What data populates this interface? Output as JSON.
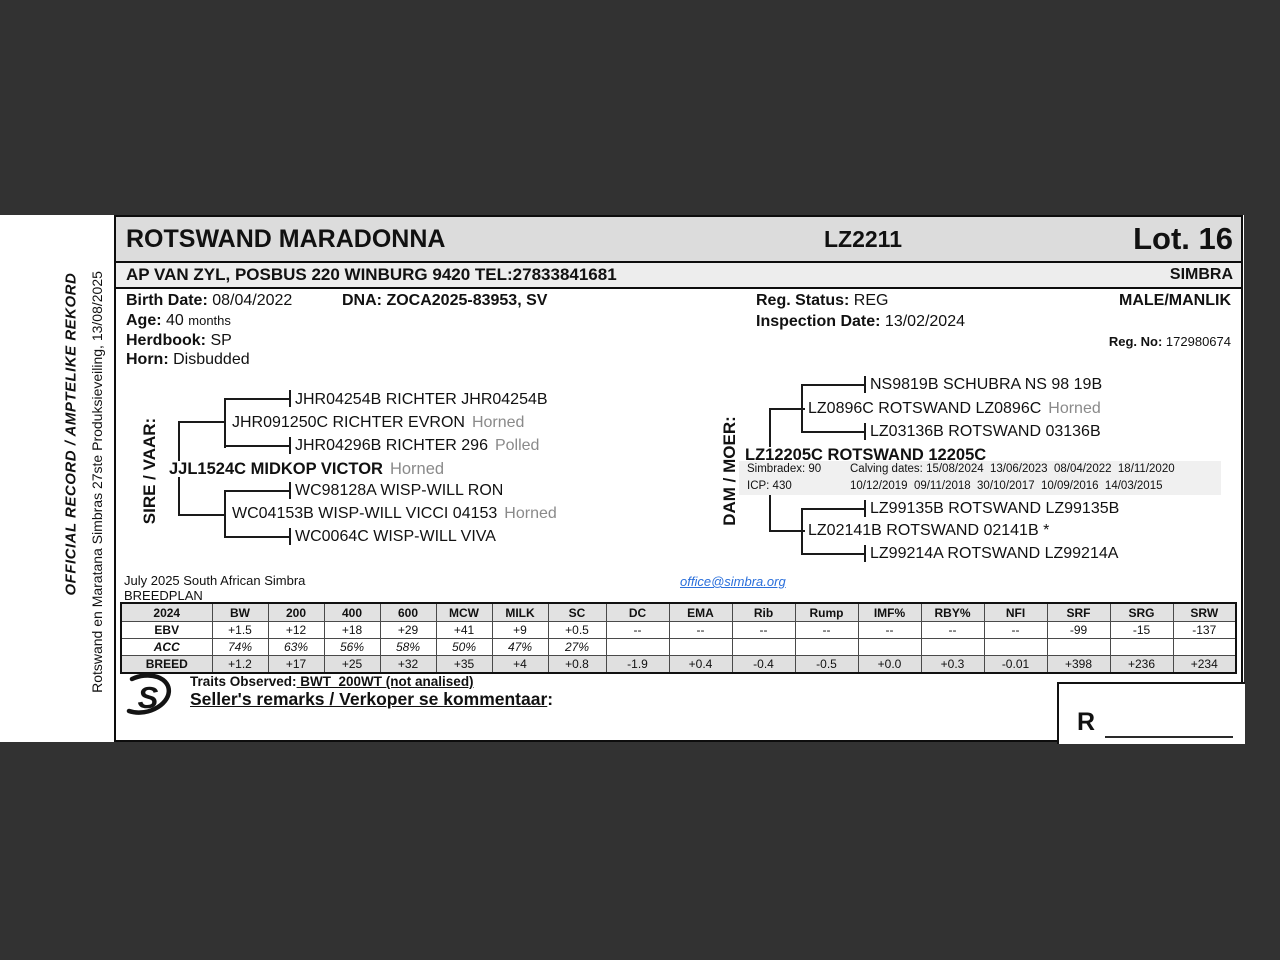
{
  "colors": {
    "page_background": "#323232",
    "link_blue": "#2a6fdb",
    "title_band_gray": "#dcdcdc",
    "owner_band_gray": "#ededed",
    "table_header_gray": "#e2e2e2",
    "dam_info_band_gray": "#f0f0f0"
  },
  "side": {
    "primary": "OFFICIAL RECORD / AMPTELIKE REKORD",
    "secondary": "Rotswand en Maratana Simbras 27ste Produksieveiling, 13/08/2025"
  },
  "header": {
    "animal_name": "ROTSWAND MARADONNA",
    "animal_id": "LZ2211",
    "lot": "Lot. 16",
    "owner_line": "AP VAN ZYL, POSBUS 220 WINBURG 9420 TEL:27833841681",
    "breed": "SIMBRA"
  },
  "details": {
    "birth_date_label": "Birth Date:",
    "birth_date": "08/04/2022",
    "dna_label": "DNA:",
    "dna": "ZOCA2025-83953, SV",
    "age_label": "Age:",
    "age_value": "40",
    "age_unit": "months",
    "herdbook_label": "Herdbook:",
    "herdbook": "SP",
    "horn_label": "Horn:",
    "horn": "Disbudded",
    "reg_status_label": "Reg. Status:",
    "reg_status": "REG",
    "inspection_label": "Inspection Date:",
    "inspection_date": "13/02/2024",
    "sex": "MALE/MANLIK",
    "reg_no_label": "Reg. No:",
    "reg_no": "172980674"
  },
  "pedigree": {
    "sire_label": "SIRE / VAAR:",
    "dam_label": "DAM / MOER:",
    "sire": {
      "name": "JJL1524C MIDKOP VICTOR",
      "horn": "Horned"
    },
    "sire_sire": {
      "name": "JHR091250C RICHTER EVRON",
      "horn": "Horned"
    },
    "sire_sire_sire": {
      "name": "JHR04254B RICHTER JHR04254B",
      "horn": ""
    },
    "sire_sire_dam": {
      "name": "JHR04296B RICHTER 296",
      "horn": "Polled"
    },
    "sire_dam": {
      "name": "WC04153B WISP-WILL VICCI 04153",
      "horn": "Horned"
    },
    "sire_dam_sire": {
      "name": "WC98128A WISP-WILL RON",
      "horn": ""
    },
    "sire_dam_dam": {
      "name": "WC0064C WISP-WILL VIVA",
      "horn": ""
    },
    "dam": {
      "name": "LZ12205C ROTSWAND 12205C",
      "horn": ""
    },
    "dam_sire": {
      "name": "LZ0896C ROTSWAND LZ0896C",
      "horn": "Horned"
    },
    "dam_sire_sire": {
      "name": "NS9819B SCHUBRA NS 98 19B",
      "horn": ""
    },
    "dam_sire_dam": {
      "name": "LZ03136B ROTSWAND 03136B",
      "horn": ""
    },
    "dam_dam": {
      "name": "LZ02141B ROTSWAND 02141B *",
      "horn": ""
    },
    "dam_dam_sire": {
      "name": "LZ99135B ROTSWAND LZ99135B",
      "horn": ""
    },
    "dam_dam_dam": {
      "name": "LZ99214A ROTSWAND LZ99214A",
      "horn": ""
    },
    "dam_info": {
      "simbradex": "Simbradex: 90",
      "icp": "ICP: 430",
      "calving_line1": "Calving dates: 15/08/2024  13/06/2023  08/04/2022  18/11/2020",
      "calving_line2": "10/12/2019  09/11/2018  30/10/2017  10/09/2016  14/03/2015"
    }
  },
  "breedplan": {
    "caption_line1": "July 2025 South African Simbra",
    "caption_line2": "BREEDPLAN",
    "email": "office@simbra.org",
    "headers": [
      "2024",
      "BW",
      "200",
      "400",
      "600",
      "MCW",
      "MILK",
      "SC",
      "DC",
      "EMA",
      "Rib",
      "Rump",
      "IMF%",
      "RBY%",
      "NFI",
      "SRF",
      "SRG",
      "SRW"
    ],
    "rows": [
      {
        "label": "EBV",
        "values": [
          "+1.5",
          "+12",
          "+18",
          "+29",
          "+41",
          "+9",
          "+0.5",
          "--",
          "--",
          "--",
          "--",
          "--",
          "--",
          "--",
          "-99",
          "-15",
          "-137"
        ]
      },
      {
        "label": "ACC",
        "values": [
          "74%",
          "63%",
          "56%",
          "58%",
          "50%",
          "47%",
          "27%",
          "",
          "",
          "",
          "",
          "",
          "",
          "",
          "",
          "",
          ""
        ]
      },
      {
        "label": "BREED",
        "values": [
          "+1.2",
          "+17",
          "+25",
          "+32",
          "+35",
          "+4",
          "+0.8",
          "-1.9",
          "+0.4",
          "-0.4",
          "-0.5",
          "+0.0",
          "+0.3",
          "-0.01",
          "+398",
          "+236",
          "+234"
        ]
      }
    ]
  },
  "footer": {
    "traits_label": "Traits Observed:",
    "traits_value": " BWT  200WT (not analised)",
    "sellers_remarks": "Seller's remarks / Verkoper se kommentaar",
    "colon": ":",
    "price_prefix": "R",
    "logo_letter": "S"
  }
}
